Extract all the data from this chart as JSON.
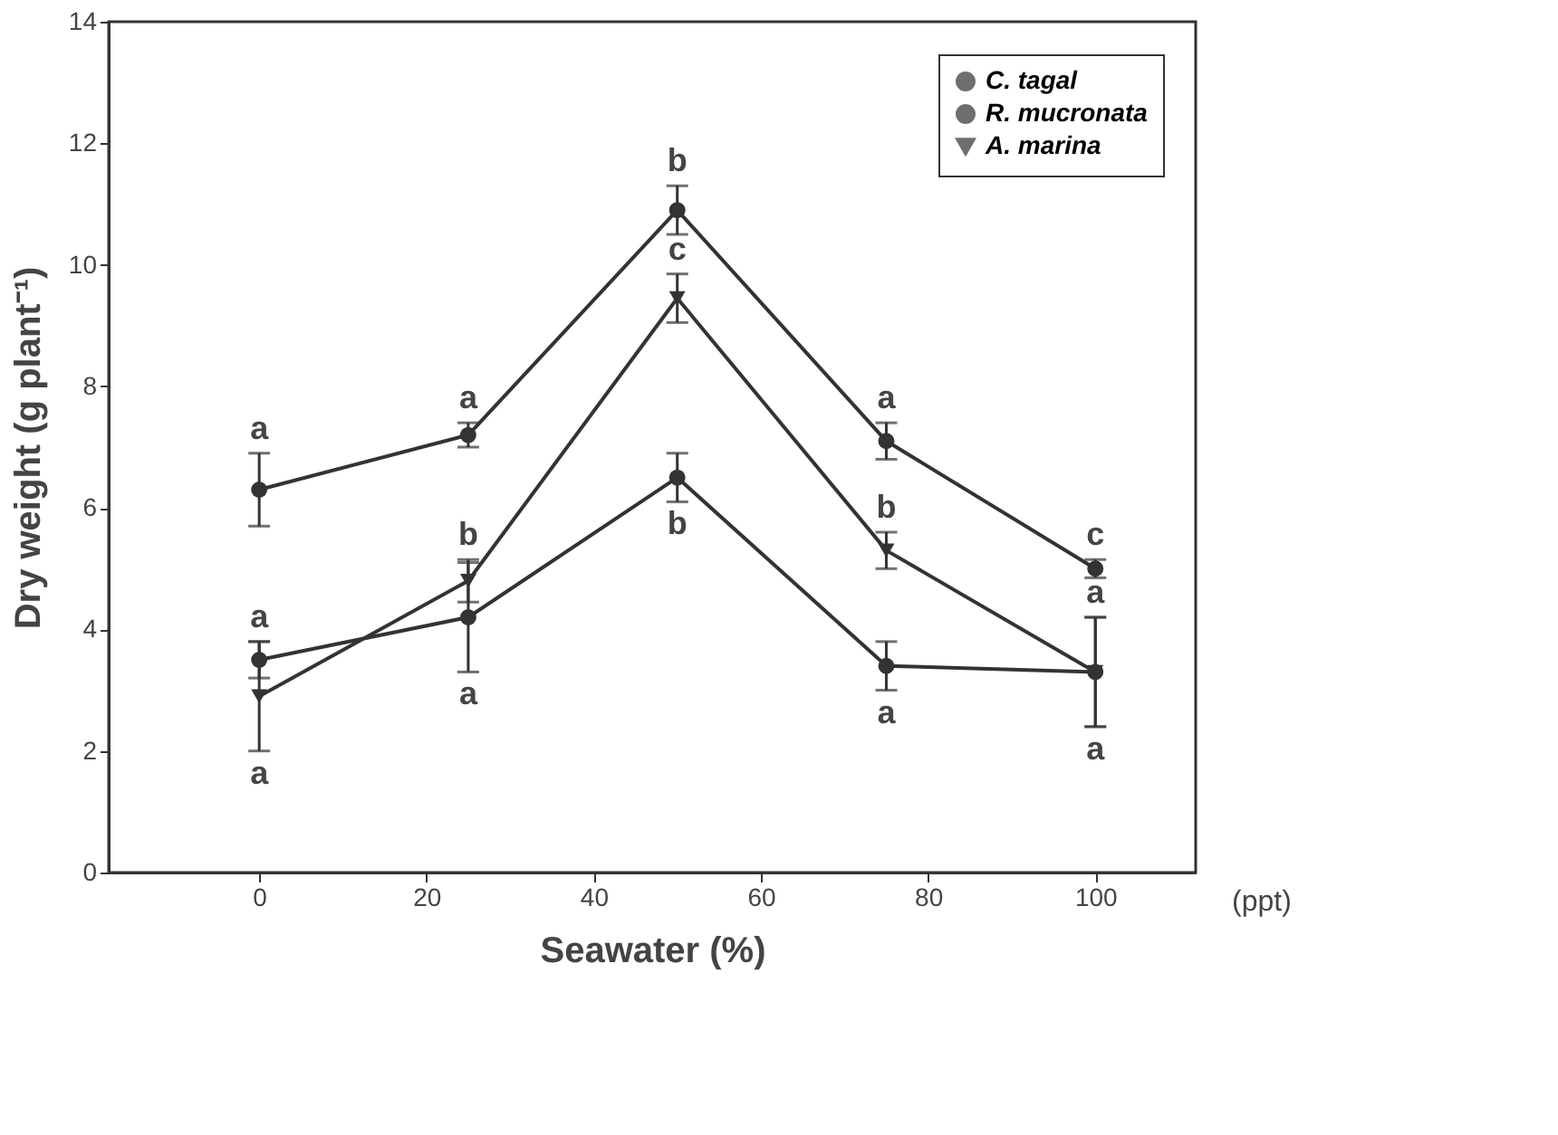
{
  "chart_data": {
    "type": "line",
    "xlabel": "Seawater (%)",
    "ylabel": "Dry weight (g plant⁻¹)",
    "x": [
      0,
      25,
      50,
      75,
      100
    ],
    "xlim": [
      -18,
      112
    ],
    "xticks": [
      0,
      20,
      40,
      60,
      80,
      100
    ],
    "ylim": [
      0,
      14
    ],
    "yticks": [
      0,
      2,
      4,
      6,
      8,
      10,
      12,
      14
    ],
    "grid": false,
    "legend": "top right",
    "line_style": "solid",
    "series": [
      {
        "name": "C. tagal",
        "color": "#333333",
        "marker": "circle",
        "values": [
          3.5,
          4.2,
          6.5,
          3.4,
          3.3
        ],
        "errors": [
          0.3,
          0.9,
          0.4,
          0.4,
          0.9
        ]
      },
      {
        "name": "R. mucronata",
        "color": "#333333",
        "marker": "circle",
        "values": [
          6.3,
          7.2,
          10.9,
          7.1,
          5.0
        ],
        "errors": [
          0.6,
          0.2,
          0.4,
          0.3,
          0.15
        ]
      },
      {
        "name": "A. marina",
        "color": "#333333",
        "marker": "triangle",
        "values": [
          2.9,
          4.8,
          9.45,
          5.3,
          3.3
        ],
        "errors": [
          0.9,
          0.35,
          0.4,
          0.3,
          0.9
        ]
      }
    ],
    "annotations": [
      "(ppt)",
      {
        "text": "a",
        "x": 0,
        "y": 6.3
      },
      {
        "text": "a",
        "x": 0,
        "y": 3.5
      },
      {
        "text": "a",
        "x": 0,
        "y": 2.9
      },
      {
        "text": "a",
        "x": 25,
        "y": 7.2
      },
      {
        "text": "b",
        "x": 25,
        "y": 4.8
      },
      {
        "text": "a",
        "x": 25,
        "y": 4.2
      },
      {
        "text": "b",
        "x": 50,
        "y": 10.9
      },
      {
        "text": "c",
        "x": 50,
        "y": 9.45
      },
      {
        "text": "b",
        "x": 50,
        "y": 6.5
      },
      {
        "text": "a",
        "x": 75,
        "y": 7.1
      },
      {
        "text": "b",
        "x": 75,
        "y": 5.3
      },
      {
        "text": "a",
        "x": 75,
        "y": 3.4
      },
      {
        "text": "c",
        "x": 100,
        "y": 5.0
      },
      {
        "text": "a",
        "x": 100,
        "y": 3.3
      },
      {
        "text": "a",
        "x": 100,
        "y": 3.3
      }
    ]
  }
}
